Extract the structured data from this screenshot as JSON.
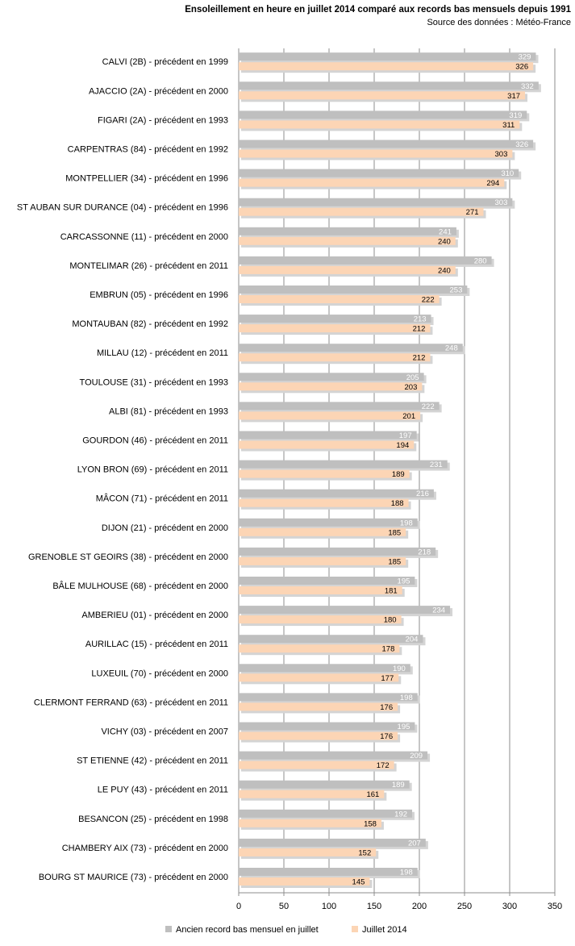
{
  "chart_data": {
    "type": "bar",
    "orientation": "horizontal",
    "title": "Ensoleillement en heure  en juillet 2014 comparé aux records bas mensuels depuis 1991",
    "subtitle": "Source des données : Météo-France",
    "categories": [
      "CALVI (2B) - précédent en 1999",
      "AJACCIO (2A) - précédent en 2000",
      "FIGARI (2A) - précédent en 1993",
      "CARPENTRAS (84) - précédent en 1992",
      "MONTPELLIER (34) - précédent en 1996",
      "ST AUBAN SUR DURANCE (04) - précédent en 1996",
      "CARCASSONNE (11) - précédent en 2000",
      "MONTELIMAR (26) - précédent en 2011",
      "EMBRUN (05) - précédent en 1996",
      "MONTAUBAN (82) - précédent en 1992",
      "MILLAU (12) - précédent en 2011",
      "TOULOUSE (31) - précédent en 1993",
      "ALBI (81) - précédent en 1993",
      "GOURDON (46) - précédent en 2011",
      "LYON BRON (69) - précédent en 2011",
      "MÂCON (71) - précédent en 2011",
      "DIJON (21) - précédent en 2000",
      "GRENOBLE ST GEOIRS (38) - précédent en 2000",
      "BÂLE MULHOUSE (68) - précédent en 2000",
      "AMBERIEU (01) - précédent en 2000",
      "AURILLAC (15) - précédent en 2011",
      "LUXEUIL (70) - précédent en 2000",
      "CLERMONT FERRAND (63) - précédent en 2011",
      "VICHY (03) - précédent en 2007",
      "ST ETIENNE (42) - précédent en 2011",
      "LE PUY (43) - précédent en 2011",
      "BESANCON (25) - précédent en 1998",
      "CHAMBERY AIX (73) - précédent en 2000",
      "BOURG ST MAURICE (73) - précédent en 2000"
    ],
    "series": [
      {
        "name": "Ancien record bas mensuel en juillet",
        "color": "#bfbfbf",
        "values": [
          329,
          332,
          319,
          326,
          310,
          303,
          241,
          280,
          253,
          213,
          248,
          205,
          222,
          197,
          231,
          216,
          198,
          218,
          195,
          234,
          204,
          190,
          198,
          195,
          209,
          189,
          192,
          207,
          198
        ]
      },
      {
        "name": "Juillet 2014",
        "color": "#fcd5b5",
        "values": [
          326,
          317,
          311,
          303,
          294,
          271,
          240,
          240,
          222,
          212,
          212,
          203,
          201,
          194,
          189,
          188,
          185,
          185,
          181,
          180,
          178,
          177,
          176,
          176,
          172,
          161,
          158,
          152,
          145
        ]
      }
    ],
    "xticks": [
      "0",
      "50",
      "100",
      "150",
      "200",
      "250",
      "300",
      "350"
    ],
    "xlim": [
      0,
      350
    ],
    "grid": "vertical",
    "legend_position": "bottom"
  }
}
